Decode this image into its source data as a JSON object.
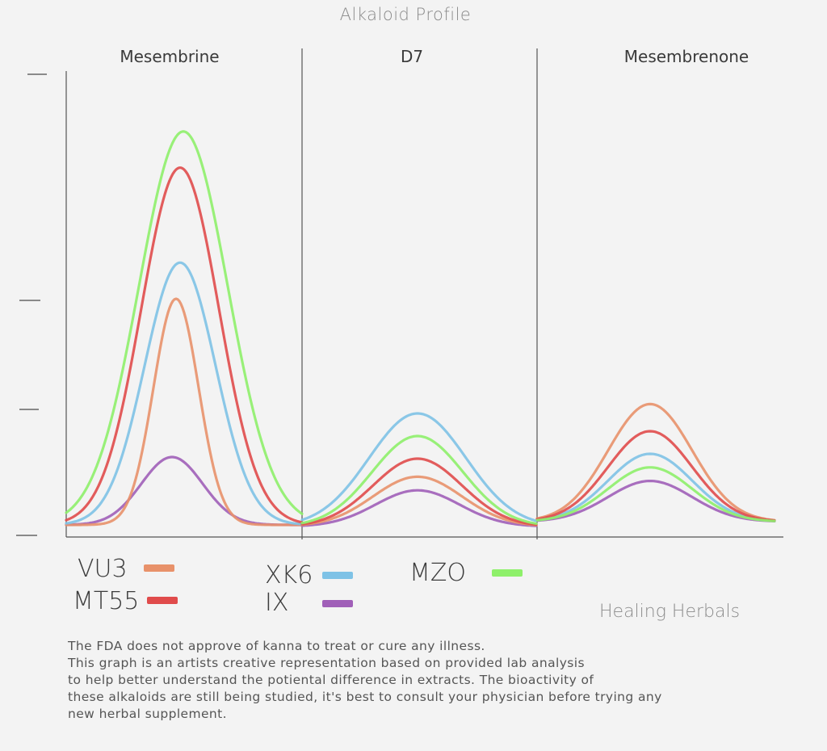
{
  "title": "Alkaloid Profile",
  "brand": "Healing Herbals",
  "disclaimer": [
    "The FDA does not approve of kanna to treat or cure any illness.",
    "This graph is an artists creative representation based on provided lab analysis",
    "to help better understand the potiental difference in extracts. The bioactivity of",
    "these alkaloids are still being studied, it's best to consult your physician before trying any",
    "new herbal supplement."
  ],
  "legend": [
    {
      "label": "VU3",
      "color": "#e8916a"
    },
    {
      "label": "MT55",
      "color": "#e04b4b"
    },
    {
      "label": "XK6",
      "color": "#7ec2e6"
    },
    {
      "label": "IX",
      "color": "#a05fb8"
    },
    {
      "label": "MZO",
      "color": "#8ef06a"
    }
  ],
  "chart_data": {
    "type": "line",
    "title": "Alkaloid Profile",
    "panels": [
      "Mesembrine",
      "D7",
      "Mesembrenone"
    ],
    "y_ticks_labeled": false,
    "grid": false,
    "series": [
      {
        "name": "VU3",
        "color": "#e8916a",
        "peaks": [
          {
            "panel": "Mesembrine",
            "height": 0.5
          },
          {
            "panel": "D7",
            "height": 0.11
          },
          {
            "panel": "Mesembrenone",
            "height": 0.26
          }
        ]
      },
      {
        "name": "MT55",
        "color": "#e04b4b",
        "peaks": [
          {
            "panel": "Mesembrine",
            "height": 0.79
          },
          {
            "panel": "D7",
            "height": 0.15
          },
          {
            "panel": "Mesembrenone",
            "height": 0.2
          }
        ]
      },
      {
        "name": "XK6",
        "color": "#7ec2e6",
        "peaks": [
          {
            "panel": "Mesembrine",
            "height": 0.58
          },
          {
            "panel": "D7",
            "height": 0.25
          },
          {
            "panel": "Mesembrenone",
            "height": 0.15
          }
        ]
      },
      {
        "name": "IX",
        "color": "#a05fb8",
        "peaks": [
          {
            "panel": "Mesembrine",
            "height": 0.15
          },
          {
            "panel": "D7",
            "height": 0.08
          },
          {
            "panel": "Mesembrenone",
            "height": 0.09
          }
        ]
      },
      {
        "name": "MZO",
        "color": "#8ef06a",
        "peaks": [
          {
            "panel": "Mesembrine",
            "height": 0.87
          },
          {
            "panel": "D7",
            "height": 0.2
          },
          {
            "panel": "Mesembrenone",
            "height": 0.12
          }
        ]
      }
    ]
  }
}
